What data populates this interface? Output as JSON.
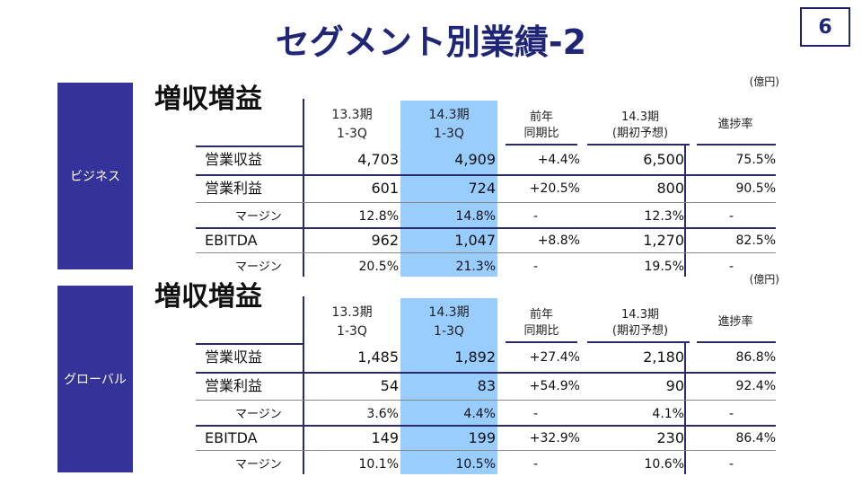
{
  "header": {
    "title": "セグメント別業績-2",
    "page_number": "6"
  },
  "unit_label": "(億円)",
  "columns": {
    "c1": [
      "13.3期",
      "1-3Q"
    ],
    "c2": [
      "14.3期",
      "1-3Q"
    ],
    "c3": [
      "前年",
      "同期比"
    ],
    "c4": [
      "14.3期",
      "(期初予想)"
    ],
    "c5": "進捗率"
  },
  "colors": {
    "accent": "#1f2677",
    "segment_bg": "#333399",
    "highlight": "#99ccff"
  },
  "sections": [
    {
      "segment": "ビジネス",
      "heading": "増収増益",
      "rows": [
        {
          "label": "営業収益",
          "v1": "4,703",
          "v2": "4,909",
          "yoy": "+4.4%",
          "plan": "6,500",
          "progress": "75.5%"
        },
        {
          "label": "営業利益",
          "v1": "601",
          "v2": "724",
          "yoy": "+20.5%",
          "plan": "800",
          "progress": "90.5%"
        },
        {
          "label": "マージン",
          "v1": "12.8%",
          "v2": "14.8%",
          "yoy": "-",
          "plan": "12.3%",
          "progress": "-"
        },
        {
          "label": "EBITDA",
          "v1": "962",
          "v2": "1,047",
          "yoy": "+8.8%",
          "plan": "1,270",
          "progress": "82.5%"
        },
        {
          "label": "マージン",
          "v1": "20.5%",
          "v2": "21.3%",
          "yoy": "-",
          "plan": "19.5%",
          "progress": "-"
        }
      ]
    },
    {
      "segment": "グローバル",
      "heading": "増収増益",
      "rows": [
        {
          "label": "営業収益",
          "v1": "1,485",
          "v2": "1,892",
          "yoy": "+27.4%",
          "plan": "2,180",
          "progress": "86.8%"
        },
        {
          "label": "営業利益",
          "v1": "54",
          "v2": "83",
          "yoy": "+54.9%",
          "plan": "90",
          "progress": "92.4%"
        },
        {
          "label": "マージン",
          "v1": "3.6%",
          "v2": "4.4%",
          "yoy": "-",
          "plan": "4.1%",
          "progress": "-"
        },
        {
          "label": "EBITDA",
          "v1": "149",
          "v2": "199",
          "yoy": "+32.9%",
          "plan": "230",
          "progress": "86.4%"
        },
        {
          "label": "マージン",
          "v1": "10.1%",
          "v2": "10.5%",
          "yoy": "-",
          "plan": "10.6%",
          "progress": "-"
        }
      ]
    }
  ]
}
